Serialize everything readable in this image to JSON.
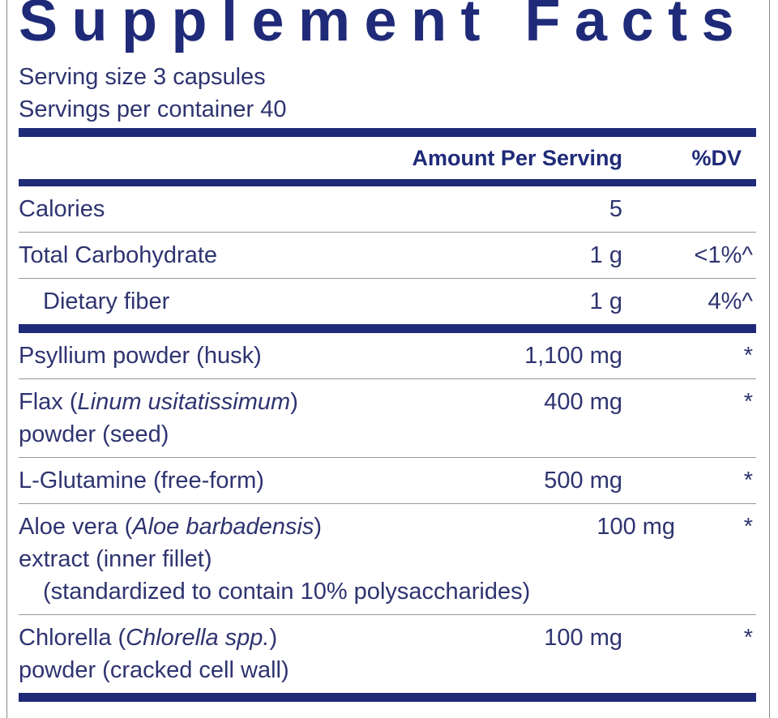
{
  "header": {
    "title": "Supplement Facts",
    "serving_size": "Serving size  3 capsules",
    "servings_per_container": "Servings per container  40"
  },
  "columns": {
    "amount": "Amount Per Serving",
    "dv": "%DV"
  },
  "nutrients": [
    {
      "lines": [
        {
          "segments": [
            {
              "text": "Calories"
            }
          ]
        }
      ],
      "amount": "5"
    },
    {
      "lines": [
        {
          "segments": [
            {
              "text": "Total Carbohydrate"
            }
          ]
        }
      ],
      "amount": "1 g",
      "dv": "<1%^"
    },
    {
      "lines": [
        {
          "indent": true,
          "segments": [
            {
              "text": "Dietary fiber"
            }
          ]
        }
      ],
      "amount": "1 g",
      "dv": "4%^"
    }
  ],
  "ingredients": [
    {
      "lines": [
        {
          "segments": [
            {
              "text": "Psyllium powder (husk)"
            }
          ]
        }
      ],
      "amount": "1,100 mg",
      "dv": "*"
    },
    {
      "lines": [
        {
          "segments": [
            {
              "text": "Flax ("
            },
            {
              "text": "Linum usitatissimum",
              "italic": true
            },
            {
              "text": ")"
            }
          ]
        },
        {
          "segments": [
            {
              "text": "powder (seed)"
            }
          ]
        }
      ],
      "amount": "400 mg",
      "dv": "*"
    },
    {
      "lines": [
        {
          "segments": [
            {
              "text": "L-Glutamine (free-form)"
            }
          ]
        }
      ],
      "amount": "500 mg",
      "dv": "*"
    },
    {
      "lines": [
        {
          "segments": [
            {
              "text": "Aloe vera ("
            },
            {
              "text": "Aloe barbadensis",
              "italic": true
            },
            {
              "text": ")"
            }
          ]
        },
        {
          "segments": [
            {
              "text": "extract (inner fillet)"
            }
          ]
        },
        {
          "indent": true,
          "segments": [
            {
              "text": "(standardized to contain 10% polysaccharides)"
            }
          ]
        }
      ],
      "amount": "100 mg",
      "dv": "*"
    },
    {
      "lines": [
        {
          "segments": [
            {
              "text": "Chlorella ("
            },
            {
              "text": "Chlorella spp.",
              "italic": true
            },
            {
              "text": ")"
            }
          ]
        },
        {
          "segments": [
            {
              "text": "powder (cracked cell wall)"
            }
          ]
        }
      ],
      "amount": "100 mg",
      "dv": "*"
    }
  ]
}
